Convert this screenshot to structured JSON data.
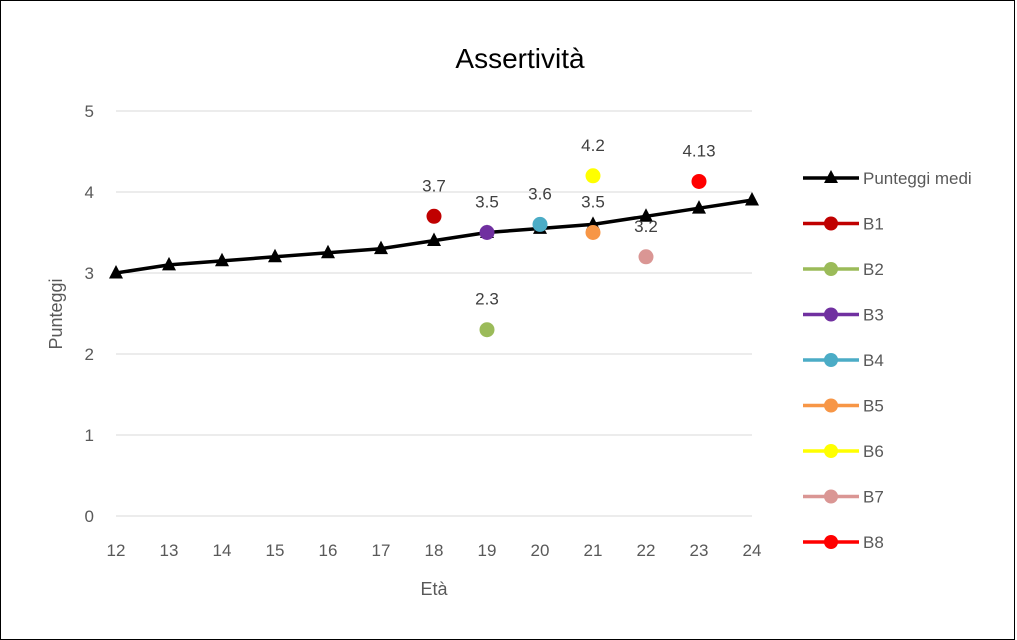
{
  "chart_data": {
    "type": "line",
    "title": "Assertività",
    "xlabel": "Età",
    "ylabel": "Punteggi",
    "xlim": [
      12,
      24
    ],
    "ylim": [
      0,
      5
    ],
    "x_ticks": [
      "12",
      "13",
      "14",
      "15",
      "16",
      "17",
      "18",
      "19",
      "20",
      "21",
      "22",
      "23",
      "24"
    ],
    "y_ticks": [
      "0",
      "1",
      "2",
      "3",
      "4",
      "5"
    ],
    "grid": "horizontal",
    "legend_position": "right",
    "series": [
      {
        "name": "Punteggi medi",
        "color": "#000000",
        "marker": "triangle",
        "line": true,
        "x": [
          12,
          13,
          14,
          15,
          16,
          17,
          18,
          19,
          20,
          21,
          22,
          23,
          24
        ],
        "y": [
          3.0,
          3.1,
          3.15,
          3.2,
          3.25,
          3.3,
          3.4,
          3.5,
          3.55,
          3.6,
          3.7,
          3.8,
          3.9
        ]
      },
      {
        "name": "B1",
        "color": "#C00000",
        "marker": "circle",
        "x": [
          18
        ],
        "y": [
          3.7
        ],
        "label": "3.7"
      },
      {
        "name": "B2",
        "color": "#9BBB59",
        "marker": "circle",
        "x": [
          19
        ],
        "y": [
          2.3
        ],
        "label": "2.3"
      },
      {
        "name": "B3",
        "color": "#7030A0",
        "marker": "circle",
        "x": [
          19
        ],
        "y": [
          3.5
        ],
        "label": "3.5"
      },
      {
        "name": "B4",
        "color": "#4BACC6",
        "marker": "circle",
        "x": [
          20
        ],
        "y": [
          3.6
        ],
        "label": "3.6"
      },
      {
        "name": "B5",
        "color": "#F79646",
        "marker": "circle",
        "x": [
          21
        ],
        "y": [
          3.5
        ],
        "label": "3.5"
      },
      {
        "name": "B6",
        "color": "#FFFF00",
        "marker": "circle",
        "x": [
          21
        ],
        "y": [
          4.2
        ],
        "label": "4.2"
      },
      {
        "name": "B7",
        "color": "#DA9694",
        "marker": "circle",
        "x": [
          22
        ],
        "y": [
          3.2
        ],
        "label": "3.2"
      },
      {
        "name": "B8",
        "color": "#FF0000",
        "marker": "circle",
        "x": [
          23
        ],
        "y": [
          4.13
        ],
        "label": "4.13"
      }
    ]
  }
}
